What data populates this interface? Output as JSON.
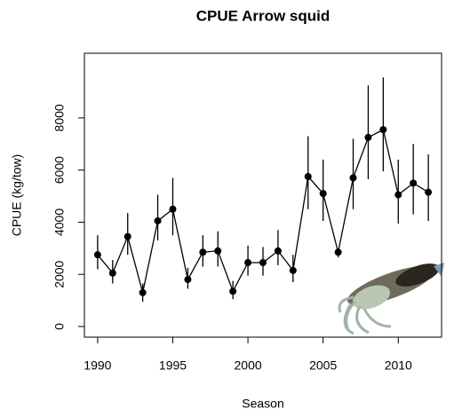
{
  "chart_data": {
    "type": "line",
    "title": "CPUE Arrow squid",
    "x_label": "Season",
    "y_label": "CPUE (kg/tow)",
    "x": [
      1990,
      1991,
      1992,
      1993,
      1994,
      1995,
      1996,
      1997,
      1998,
      1999,
      2000,
      2001,
      2002,
      2003,
      2004,
      2005,
      2006,
      2007,
      2008,
      2009,
      2010,
      2011,
      2012
    ],
    "values": [
      2750,
      2050,
      3450,
      1300,
      4050,
      4500,
      1800,
      2850,
      2900,
      1350,
      2450,
      2450,
      2900,
      2150,
      5750,
      5100,
      2850,
      5700,
      7250,
      7550,
      5050,
      5500,
      5150
    ],
    "lower": [
      2200,
      1650,
      2750,
      950,
      3300,
      3500,
      1450,
      2300,
      2300,
      1050,
      1950,
      1950,
      2350,
      1700,
      4500,
      4050,
      2650,
      4500,
      5650,
      5950,
      3950,
      4300,
      4050
    ],
    "upper": [
      3500,
      2550,
      4350,
      1650,
      5050,
      5700,
      2250,
      3500,
      3650,
      1750,
      3100,
      3050,
      3700,
      2750,
      7300,
      6400,
      3000,
      7200,
      9250,
      9550,
      6400,
      7000,
      6600
    ],
    "color": "#000000",
    "xlim": [
      1989.12,
      2012.88
    ],
    "xticks": [
      1990,
      1995,
      2000,
      2005,
      2010
    ],
    "ylim": [
      -408,
      10480
    ],
    "yticks": [
      0,
      2000,
      4000,
      6000,
      8000
    ]
  }
}
